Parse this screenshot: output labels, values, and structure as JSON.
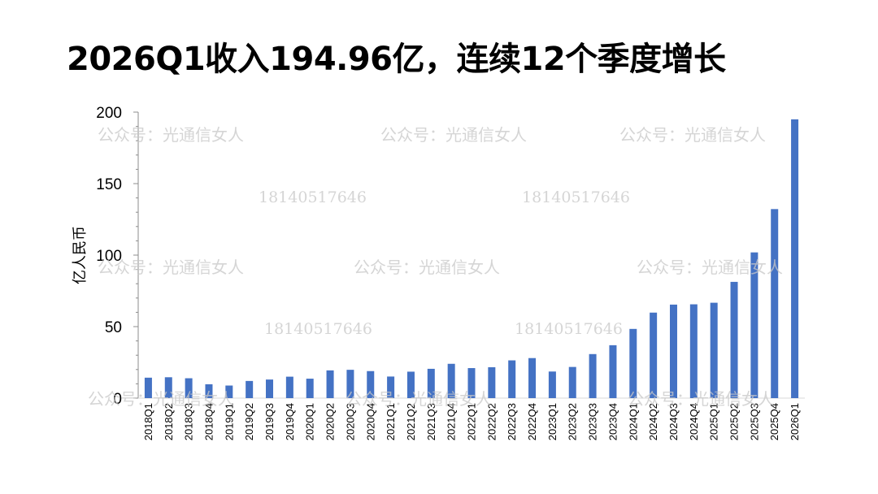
{
  "title": "2026Q1收入194.96亿，连续12个季度增长",
  "watermarks": {
    "account": "公众号：光通信女人",
    "phone": "18140517646"
  },
  "chart_data": {
    "type": "bar",
    "ylabel": "亿人民币",
    "xlabel": "",
    "ylim": [
      0,
      200
    ],
    "yticks": [
      0,
      50,
      100,
      150,
      200
    ],
    "grid": false,
    "bar_color": "#4472c4",
    "categories": [
      "2018Q1",
      "2018Q2",
      "2018Q3",
      "2018Q4",
      "2019Q1",
      "2019Q2",
      "2019Q3",
      "2019Q4",
      "2020Q1",
      "2020Q2",
      "2020Q3",
      "2020Q4",
      "2021Q1",
      "2021Q2",
      "2021Q3",
      "2021Q4",
      "2022Q1",
      "2022Q2",
      "2022Q3",
      "2022Q4",
      "2023Q1",
      "2023Q2",
      "2023Q3",
      "2023Q4",
      "2024Q1",
      "2024Q2",
      "2024Q3",
      "2024Q4",
      "2025Q1",
      "2025Q2",
      "2025Q3",
      "2025Q4",
      "2026Q1"
    ],
    "values": [
      14.3,
      14.6,
      13.9,
      9.7,
      8.8,
      12.0,
      13.0,
      15.0,
      13.6,
      19.4,
      19.8,
      18.9,
      15.1,
      18.5,
      20.5,
      24.0,
      21.0,
      21.6,
      26.4,
      28.0,
      18.6,
      21.8,
      30.8,
      37.0,
      48.4,
      59.8,
      65.4,
      65.6,
      66.7,
      81.3,
      101.9,
      132.2,
      194.96
    ]
  }
}
